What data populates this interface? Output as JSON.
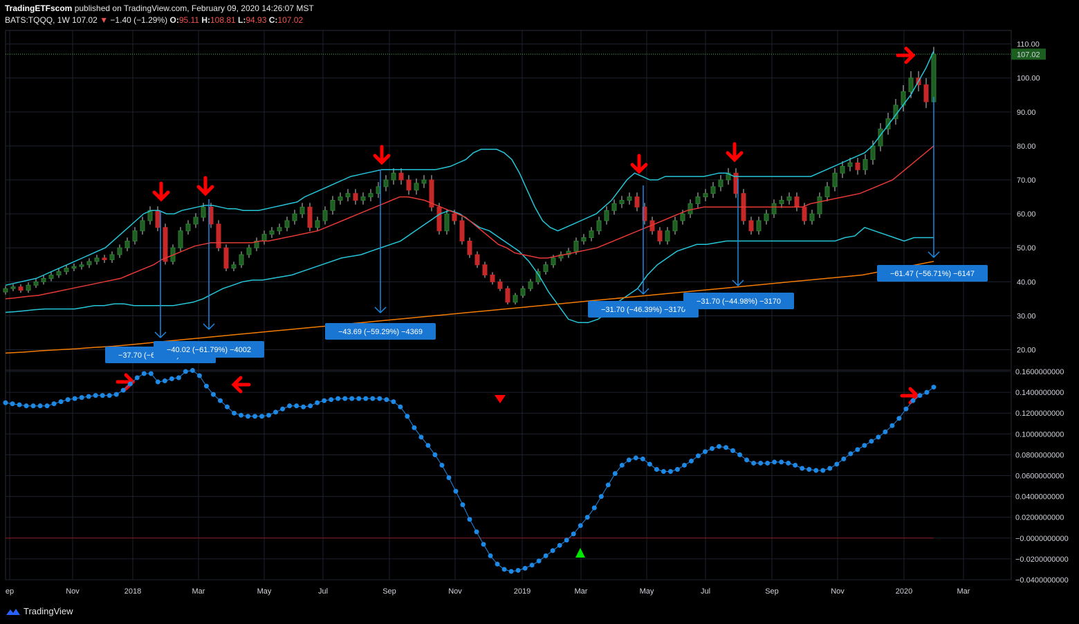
{
  "header": {
    "publisher": "TradingETFscom",
    "published_text": "published on TradingView.com, February 09, 2020 14:26:07 MST",
    "symbol": "BATS:TQQQ, 1W",
    "last": "107.02",
    "change": "−1.40 (−1.29%)",
    "o_label": "O:",
    "o": "95.11",
    "h_label": "H:",
    "h": "108.81",
    "l_label": "L:",
    "l": "94.93",
    "c_label": "C:",
    "c": "107.02"
  },
  "footer": {
    "brand": "TradingView"
  },
  "colors": {
    "up": "#26a69a",
    "up_body": "#1f5e22",
    "down": "#c62828",
    "bb": "#26c6da",
    "ma_mid": "#e53935",
    "ma_long": "#f57c00",
    "osc": "#1e88e5",
    "arrow": "#ff0000",
    "measure": "#1e88e5",
    "label_bg": "#1976d2",
    "grid": "#1e2230"
  },
  "chart_data": [
    {
      "type": "candlestick",
      "title": "BATS:TQQQ, 1W",
      "last_price_label": "107.02",
      "y_ticks": [
        "20.00",
        "30.00",
        "40.00",
        "50.00",
        "60.00",
        "70.00",
        "80.00",
        "90.00",
        "100.00",
        "110.00"
      ],
      "ylim": [
        14,
        114
      ],
      "x_tick_labels": [
        "ep",
        "Nov",
        "2018",
        "Mar",
        "May",
        "Jul",
        "Sep",
        "Nov",
        "2019",
        "Mar",
        "May",
        "Jul",
        "Sep",
        "Nov",
        "2020",
        "Mar"
      ],
      "closes": [
        38,
        38.5,
        37.5,
        39,
        40,
        41,
        42,
        43,
        44,
        44.5,
        45,
        46,
        47,
        46.5,
        48,
        50,
        52,
        55,
        58,
        61,
        56,
        46,
        50,
        55,
        57,
        59,
        62,
        57,
        50,
        44,
        45,
        48,
        50,
        52,
        54,
        55,
        56,
        58,
        60,
        62,
        56,
        58,
        61,
        64,
        65,
        66,
        64,
        65,
        66,
        68,
        70,
        72,
        70,
        67,
        69,
        70,
        62,
        55,
        60,
        58,
        52,
        48,
        45,
        42,
        40,
        38,
        34,
        36,
        38,
        40,
        43,
        45,
        47,
        48,
        49,
        52,
        53,
        55,
        58,
        61,
        63,
        64,
        65,
        62,
        58,
        55,
        52,
        55,
        58,
        60,
        63,
        65,
        66,
        68,
        70,
        72,
        66,
        58,
        55,
        58,
        60,
        63,
        64,
        65,
        62,
        58,
        60,
        65,
        68,
        72,
        74,
        75,
        73,
        76,
        80,
        85,
        88,
        92,
        96,
        100,
        98,
        93,
        107.02
      ],
      "bb_upper": [
        39,
        39.5,
        40,
        40.5,
        41,
        42,
        43,
        44,
        45,
        46,
        47,
        48,
        49,
        50,
        52,
        54,
        56,
        58,
        60,
        61,
        61,
        60,
        60,
        61,
        61.5,
        62,
        62.5,
        62.5,
        62,
        61.5,
        61.5,
        61,
        61,
        61,
        61.5,
        62,
        62.5,
        63,
        63.5,
        65,
        66,
        67,
        68,
        69,
        70,
        71,
        71.5,
        72,
        72.5,
        73,
        73,
        73,
        73,
        73,
        73,
        73,
        73,
        73.5,
        74,
        75,
        76,
        78,
        79,
        79,
        79,
        78,
        76,
        72,
        67,
        62,
        58,
        56,
        55,
        56,
        57,
        58,
        59,
        60,
        62,
        64,
        67,
        70,
        72,
        71,
        70,
        70,
        71,
        71,
        71,
        71,
        71,
        71,
        71.5,
        72,
        72,
        71,
        71,
        71,
        71,
        71,
        71,
        71,
        71,
        71,
        71,
        71,
        72,
        73,
        74,
        75,
        76,
        77,
        78,
        80,
        83,
        86,
        89,
        92,
        95,
        99,
        103,
        108
      ],
      "bb_middle": [
        35,
        35.2,
        35.5,
        35.8,
        36,
        36.5,
        37,
        37.5,
        38,
        38.5,
        39,
        39.5,
        40,
        40.5,
        41,
        42,
        43,
        44,
        45,
        46.5,
        47.5,
        48.5,
        49.5,
        50.5,
        51,
        51.5,
        51.5,
        51.5,
        51.5,
        51.5,
        51.5,
        52,
        52,
        52.5,
        53,
        53.5,
        54,
        54.5,
        55,
        56,
        57,
        58,
        59,
        60,
        61,
        62,
        63,
        64,
        65,
        65,
        64.5,
        64,
        63,
        62,
        61,
        60,
        59,
        57,
        55,
        53,
        51,
        50,
        48.5,
        48,
        47.5,
        47,
        47,
        47.5,
        48,
        48.5,
        49,
        49.5,
        50,
        51,
        52,
        53,
        54,
        55,
        56,
        57,
        58,
        59,
        60,
        61,
        61.5,
        62,
        62,
        62,
        62,
        62,
        62,
        62,
        62,
        62,
        62,
        62,
        62,
        62,
        63,
        63.5,
        64,
        64.5,
        65,
        65.5,
        66,
        67,
        68,
        69,
        70,
        72,
        74,
        76,
        78,
        80
      ],
      "bb_lower": [
        31,
        31.2,
        31.5,
        31.8,
        32,
        32,
        32,
        32,
        32.5,
        33,
        33,
        33.5,
        33.5,
        33,
        33,
        33,
        33,
        33,
        33.5,
        34,
        35,
        36.5,
        38,
        39,
        40,
        40.5,
        40.5,
        41,
        41.5,
        42,
        43,
        44,
        45,
        46,
        47,
        47.5,
        48,
        49,
        50,
        51,
        52,
        54,
        56,
        58,
        60,
        61,
        60,
        58,
        56,
        55,
        53,
        51,
        49,
        46,
        42,
        37,
        33,
        29,
        28,
        28,
        29,
        31,
        34,
        36,
        38,
        42,
        45,
        47,
        49,
        50,
        51,
        51,
        51.5,
        52,
        52,
        52,
        52,
        52,
        52,
        52,
        52,
        52,
        52,
        52,
        52,
        53,
        53.5,
        56,
        55,
        54,
        53,
        52,
        53,
        53,
        53
      ],
      "ma_long": [
        19,
        19.3,
        19.7,
        20,
        20.3,
        20.7,
        21,
        21.5,
        22,
        22.5,
        23,
        23.5,
        24,
        24.5,
        25,
        25.5,
        26,
        26.5,
        27,
        27.5,
        28,
        28.5,
        29,
        29.5,
        30,
        30.5,
        31,
        31.5,
        32,
        32.5,
        33,
        33.5,
        34,
        34.5,
        35,
        35.5,
        36,
        36.5,
        37,
        37.5,
        38,
        38.5,
        39,
        39.5,
        40,
        40.5,
        41,
        41.5,
        42,
        43,
        44,
        45,
        46
      ]
    },
    {
      "type": "line",
      "y_ticks": [
        "0.1600000000",
        "0.1400000000",
        "0.1200000000",
        "0.1000000000",
        "0.0800000000",
        "0.0600000000",
        "0.0400000000",
        "0.0200000000",
        "−0.0000000000",
        "−0.0200000000",
        "−0.0400000000"
      ],
      "ylim": [
        -0.04,
        0.16
      ],
      "values": [
        0.13,
        0.129,
        0.128,
        0.127,
        0.127,
        0.127,
        0.127,
        0.129,
        0.131,
        0.133,
        0.134,
        0.135,
        0.136,
        0.137,
        0.137,
        0.137,
        0.138,
        0.142,
        0.148,
        0.154,
        0.158,
        0.158,
        0.15,
        0.151,
        0.153,
        0.154,
        0.16,
        0.161,
        0.156,
        0.146,
        0.138,
        0.132,
        0.126,
        0.12,
        0.118,
        0.117,
        0.117,
        0.117,
        0.118,
        0.121,
        0.124,
        0.127,
        0.127,
        0.126,
        0.127,
        0.13,
        0.132,
        0.133,
        0.134,
        0.134,
        0.134,
        0.134,
        0.134,
        0.134,
        0.134,
        0.133,
        0.131,
        0.126,
        0.117,
        0.106,
        0.097,
        0.089,
        0.08,
        0.07,
        0.058,
        0.045,
        0.032,
        0.018,
        0.006,
        -0.006,
        -0.017,
        -0.025,
        -0.03,
        -0.032,
        -0.031,
        -0.029,
        -0.026,
        -0.022,
        -0.017,
        -0.012,
        -0.007,
        -0.002,
        0.004,
        0.012,
        0.02,
        0.029,
        0.04,
        0.051,
        0.062,
        0.07,
        0.075,
        0.077,
        0.076,
        0.071,
        0.066,
        0.064,
        0.064,
        0.066,
        0.07,
        0.074,
        0.079,
        0.083,
        0.086,
        0.088,
        0.087,
        0.084,
        0.08,
        0.075,
        0.072,
        0.072,
        0.072,
        0.073,
        0.073,
        0.072,
        0.07,
        0.067,
        0.066,
        0.065,
        0.065,
        0.067,
        0.071,
        0.076,
        0.081,
        0.085,
        0.089,
        0.093,
        0.097,
        0.102,
        0.108,
        0.115,
        0.124,
        0.132,
        0.137,
        0.14,
        0.145
      ],
      "zero_line": 0
    }
  ],
  "annotations": {
    "measure_labels": [
      "−37.70 (−61.96%) −3770",
      "−40.02 (−61.79%) −4002",
      "−43.69 (−59.29%) −4369",
      "−31.70 (−46.39%) −3170",
      "−31.70 (−44.98%) −3170",
      "−61.47 (−56.71%) −6147"
    ]
  }
}
